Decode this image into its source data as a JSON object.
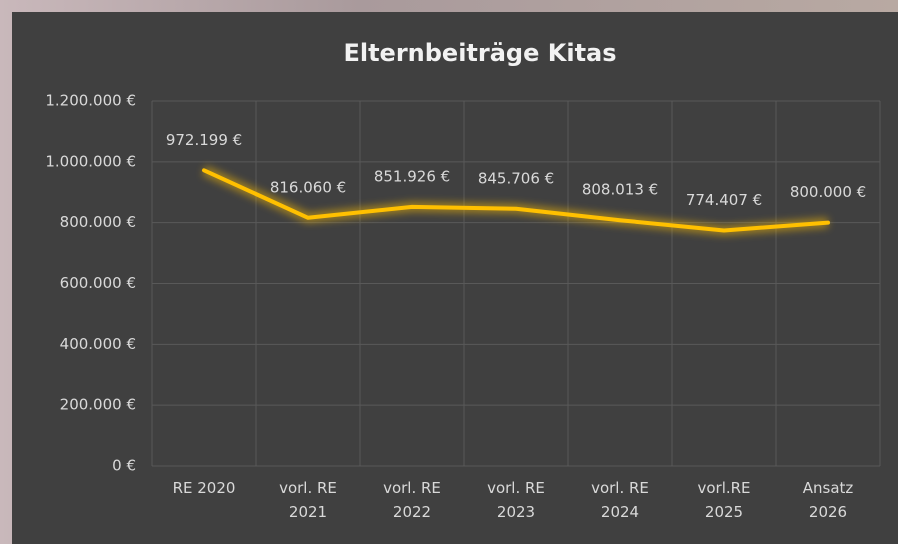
{
  "chart_data": {
    "type": "line",
    "title": "Elternbeiträge Kitas",
    "categories": [
      "RE 2020",
      "vorl. RE 2021",
      "vorl. RE 2022",
      "vorl. RE 2023",
      "vorl. RE 2024",
      "vorl.RE 2025",
      "Ansatz 2026"
    ],
    "series": [
      {
        "name": "Elternbeiträge Kitas",
        "color": "#ffc000",
        "values": [
          972199,
          816060,
          851926,
          845706,
          808013,
          774407,
          800000
        ],
        "value_labels": [
          "972.199 €",
          "816.060 €",
          "851.926 €",
          "845.706 €",
          "808.013 €",
          "774.407 €",
          "800.000 €"
        ]
      }
    ],
    "ylim": [
      0,
      1200000
    ],
    "yticks": [
      {
        "value": 0,
        "label": "0 €"
      },
      {
        "value": 200000,
        "label": "200.000 €"
      },
      {
        "value": 400000,
        "label": "400.000 €"
      },
      {
        "value": 600000,
        "label": "600.000 €"
      },
      {
        "value": 800000,
        "label": "800.000 €"
      },
      {
        "value": 1000000,
        "label": "1.000.000 €"
      },
      {
        "value": 1200000,
        "label": "1.200.000 €"
      }
    ],
    "grid": true
  }
}
